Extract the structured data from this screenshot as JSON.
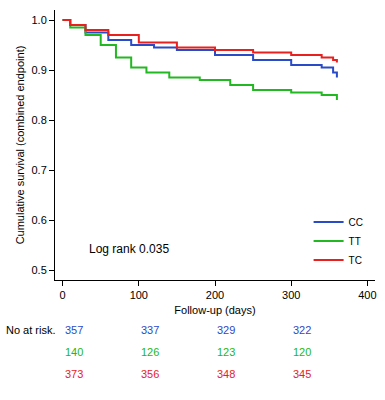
{
  "chart_data": {
    "type": "line",
    "line_style": "step",
    "x_label": "Follow-up (days)",
    "y_label": "Cumulative survival (combined endpoint)",
    "annotations": [
      "Log rank 0.035"
    ],
    "xlim": [
      -10,
      410
    ],
    "xticks": [
      0,
      100,
      200,
      300,
      400
    ],
    "ylim": [
      0.48,
      1.02
    ],
    "yticks": [
      0.5,
      0.6,
      0.7,
      0.8,
      0.9,
      {
        "value": 1,
        "label": "1.0"
      }
    ],
    "legend": "lower right",
    "grid": false,
    "series": [
      {
        "name": "CC",
        "color": "#2a4bc8",
        "x": [
          0,
          10,
          30,
          60,
          90,
          120,
          150,
          200,
          250,
          300,
          340,
          355,
          360
        ],
        "values": [
          1.0,
          0.99,
          0.975,
          0.96,
          0.95,
          0.945,
          0.94,
          0.93,
          0.92,
          0.91,
          0.905,
          0.895,
          0.885
        ]
      },
      {
        "name": "TT",
        "color": "#22b822",
        "x": [
          0,
          10,
          30,
          50,
          70,
          90,
          110,
          140,
          180,
          220,
          250,
          300,
          340,
          360
        ],
        "values": [
          1.0,
          0.985,
          0.97,
          0.95,
          0.925,
          0.905,
          0.895,
          0.885,
          0.88,
          0.87,
          0.86,
          0.855,
          0.85,
          0.84
        ]
      },
      {
        "name": "TC",
        "color": "#e8211f",
        "x": [
          0,
          10,
          30,
          60,
          100,
          150,
          200,
          250,
          300,
          340,
          355,
          360
        ],
        "values": [
          1.0,
          0.99,
          0.98,
          0.97,
          0.955,
          0.945,
          0.94,
          0.935,
          0.93,
          0.925,
          0.92,
          0.915
        ]
      }
    ],
    "at_risk": {
      "label": "No at risk.",
      "x": [
        0,
        100,
        200,
        300
      ],
      "counts": [
        [
          357,
          337,
          329,
          322
        ],
        [
          140,
          126,
          123,
          120
        ],
        [
          373,
          356,
          348,
          345
        ]
      ]
    }
  }
}
